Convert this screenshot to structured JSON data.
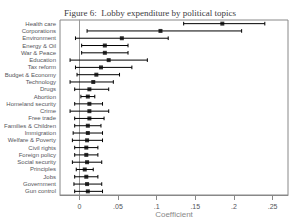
{
  "chart_data": {
    "type": "scatter",
    "title": "Figure 6:  Lobby expenditure by political topics",
    "xlabel": "Coefficient",
    "categories": [
      "Health care",
      "Corporations",
      "Environment",
      "Energy & Oil",
      "War & Peace",
      "Education",
      "Tax reform",
      "Budget & Economy",
      "Technology",
      "Drugs",
      "Abortion",
      "Homeland security",
      "Crime",
      "Free trade",
      "Families & Children",
      "Immigration",
      "Welfare & Poverty",
      "Civil rights",
      "Foreign policy",
      "Social security",
      "Principles",
      "Jobs",
      "Government",
      "Gun control"
    ],
    "values": [
      0.185,
      0.105,
      0.055,
      0.033,
      0.033,
      0.038,
      0.028,
      0.022,
      0.018,
      0.013,
      0.011,
      0.013,
      0.013,
      0.013,
      0.011,
      0.011,
      0.01,
      0.009,
      0.009,
      0.01,
      0.007,
      0.009,
      0.01,
      0.011
    ],
    "ci_lo": [
      0.135,
      0.01,
      -0.005,
      0.003,
      0.003,
      -0.012,
      -0.005,
      -0.003,
      -0.012,
      -0.006,
      0.002,
      -0.006,
      -0.012,
      -0.006,
      -0.006,
      -0.008,
      -0.009,
      -0.006,
      -0.006,
      -0.009,
      -0.004,
      -0.006,
      -0.007,
      -0.006
    ],
    "ci_hi": [
      0.24,
      0.21,
      0.115,
      0.063,
      0.063,
      0.088,
      0.068,
      0.052,
      0.044,
      0.038,
      0.02,
      0.03,
      0.038,
      0.032,
      0.028,
      0.03,
      0.03,
      0.024,
      0.024,
      0.029,
      0.018,
      0.024,
      0.029,
      0.03
    ],
    "xlim": [
      -0.025,
      0.27
    ],
    "xticks": [
      0,
      {
        "value": 0.05,
        "label": ".05"
      },
      {
        "value": 0.1,
        "label": ".1"
      },
      {
        "value": 0.15,
        "label": ".15"
      },
      {
        "value": 0.2,
        "label": ".2"
      },
      {
        "value": 0.25,
        "label": ".25"
      }
    ],
    "color": "black",
    "marker": "square",
    "grid": false
  }
}
